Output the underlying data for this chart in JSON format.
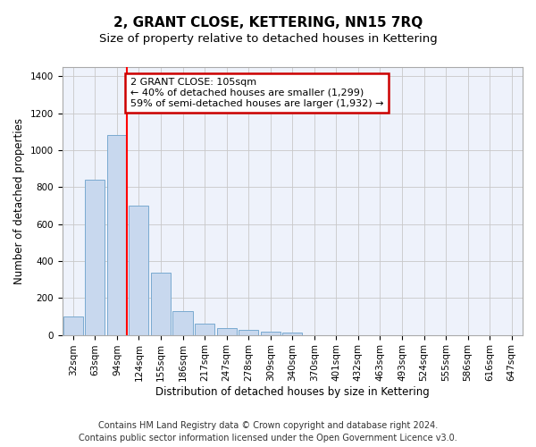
{
  "title": "2, GRANT CLOSE, KETTERING, NN15 7RQ",
  "subtitle": "Size of property relative to detached houses in Kettering",
  "xlabel": "Distribution of detached houses by size in Kettering",
  "ylabel": "Number of detached properties",
  "categories": [
    "32sqm",
    "63sqm",
    "94sqm",
    "124sqm",
    "155sqm",
    "186sqm",
    "217sqm",
    "247sqm",
    "278sqm",
    "309sqm",
    "340sqm",
    "370sqm",
    "401sqm",
    "432sqm",
    "463sqm",
    "493sqm",
    "524sqm",
    "555sqm",
    "586sqm",
    "616sqm",
    "647sqm"
  ],
  "values": [
    100,
    840,
    1080,
    700,
    335,
    130,
    60,
    35,
    25,
    17,
    12,
    0,
    0,
    0,
    0,
    0,
    0,
    0,
    0,
    0,
    0
  ],
  "bar_color": "#c8d8ee",
  "bar_edge_color": "#7aaad0",
  "red_line_index": 2,
  "annotation_text": "2 GRANT CLOSE: 105sqm\n← 40% of detached houses are smaller (1,299)\n59% of semi-detached houses are larger (1,932) →",
  "annotation_box_color": "#ffffff",
  "annotation_box_edge": "#cc0000",
  "ylim": [
    0,
    1450
  ],
  "yticks": [
    0,
    200,
    400,
    600,
    800,
    1000,
    1200,
    1400
  ],
  "footer_line1": "Contains HM Land Registry data © Crown copyright and database right 2024.",
  "footer_line2": "Contains public sector information licensed under the Open Government Licence v3.0.",
  "background_color": "#eef2fb",
  "grid_color": "#c8c8c8",
  "title_fontsize": 11,
  "subtitle_fontsize": 9.5,
  "axis_label_fontsize": 8.5,
  "tick_fontsize": 7.5,
  "annotation_fontsize": 8,
  "footer_fontsize": 7
}
